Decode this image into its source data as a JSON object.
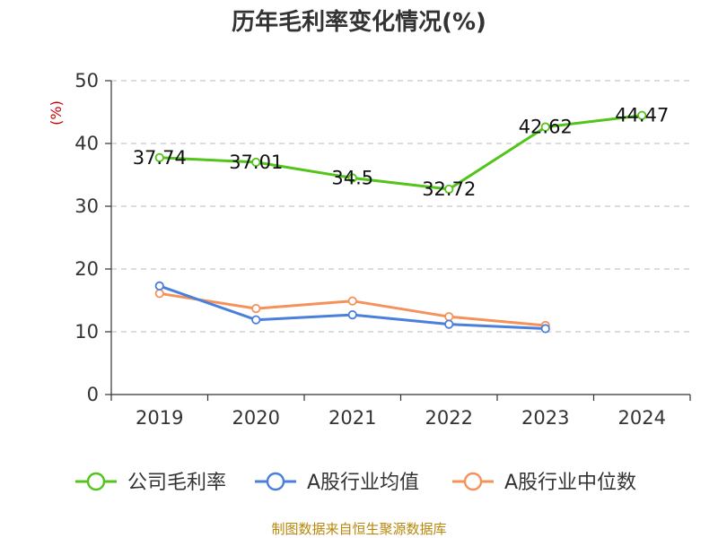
{
  "chart_data": {
    "type": "line",
    "title": "历年毛利率变化情况(%)",
    "ylabel": "(%)",
    "categories": [
      "2019",
      "2020",
      "2021",
      "2022",
      "2023",
      "2024"
    ],
    "ylim": [
      0,
      50
    ],
    "yticks": [
      "0",
      "10",
      "20",
      "30",
      "40",
      "50"
    ],
    "grid": true,
    "legend_position": "bottom",
    "series": [
      {
        "name": "公司毛利率",
        "color": "#52c41a",
        "values": [
          37.74,
          37.01,
          34.5,
          32.72,
          42.62,
          44.47
        ],
        "labels": [
          "37.74",
          "37.01",
          "34.5",
          "32.72",
          "42.62",
          "44.47"
        ]
      },
      {
        "name": "A股行业均值",
        "color": "#4a7fdb",
        "values": [
          17.3,
          11.9,
          12.7,
          11.2,
          10.5,
          null
        ]
      },
      {
        "name": "A股行业中位数",
        "color": "#f4925a",
        "values": [
          16.1,
          13.7,
          14.9,
          12.4,
          11.0,
          null
        ]
      }
    ]
  },
  "source": "制图数据来自恒生聚源数据库"
}
